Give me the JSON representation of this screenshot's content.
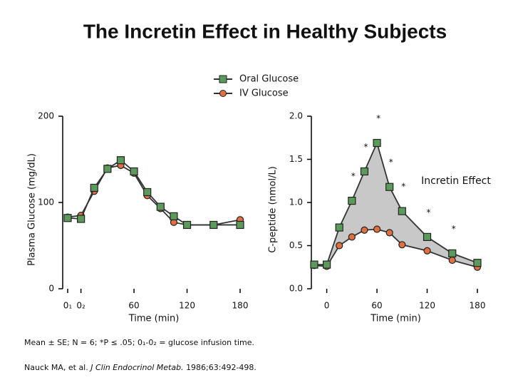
{
  "title": "The Incretin Effect in Healthy Subjects",
  "footnote": "Mean ± SE; N = 6; *P ≤ .05; 0₁-0₂ = glucose infusion time.",
  "citation": {
    "authors": "Nauck MA, et al.",
    "journal": "J Clin Endocrinol Metab.",
    "details": "1986;63:492-498."
  },
  "chart_data": [
    {
      "type": "line",
      "ylabel": "Plasma Glucose (mg/dL)",
      "xlabel": "Time (min)",
      "xlim": [
        -15,
        180
      ],
      "xticks": [
        {
          "value": -15,
          "label": "0₁"
        },
        {
          "value": 0,
          "label": "0₂"
        },
        60,
        120,
        180
      ],
      "ylim": [
        0,
        200
      ],
      "yticks": [
        0,
        100,
        200
      ],
      "grid": false,
      "legend": "top",
      "series": [
        {
          "name": "Oral Glucose",
          "color": "#5b9a5b",
          "line_color": "#333333",
          "marker": "square",
          "x": [
            -15,
            0,
            15,
            30,
            45,
            60,
            75,
            90,
            105,
            120,
            150,
            180
          ],
          "values": [
            82,
            81,
            117,
            139,
            149,
            136,
            112,
            95,
            84,
            74,
            74,
            74
          ]
        },
        {
          "name": "IV Glucose",
          "color": "#e0703f",
          "line_color": "#333333",
          "marker": "circle",
          "x": [
            -15,
            0,
            15,
            30,
            45,
            60,
            75,
            90,
            105,
            120,
            150,
            180
          ],
          "values": [
            83,
            85,
            113,
            140,
            143,
            134,
            108,
            93,
            77,
            74,
            74,
            80
          ]
        }
      ]
    },
    {
      "type": "line",
      "ylabel": "C-peptide (nmol/L)",
      "xlabel": "Time (min)",
      "xlim": [
        -15,
        180
      ],
      "xticks": [
        0,
        60,
        120,
        180
      ],
      "ylim": [
        0,
        2
      ],
      "yticks": [
        {
          "value": 0,
          "label": "0.0"
        },
        0.5,
        {
          "value": 1,
          "label": "1.0"
        },
        1.5,
        {
          "value": 2,
          "label": "2.0"
        }
      ],
      "grid": false,
      "shade_between": true,
      "annotation": "Incretin Effect",
      "series": [
        {
          "name": "Oral Glucose",
          "color": "#5b9a5b",
          "line_color": "#333333",
          "marker": "square",
          "x": [
            -15,
            0,
            15,
            30,
            45,
            60,
            75,
            90,
            120,
            150,
            180
          ],
          "values": [
            0.28,
            0.28,
            0.71,
            1.02,
            1.36,
            1.69,
            1.18,
            0.9,
            0.6,
            0.41,
            0.3
          ],
          "point_labels": [
            null,
            null,
            null,
            "*",
            "*",
            "*",
            "*",
            "*",
            "*",
            "*",
            null
          ]
        },
        {
          "name": "IV Glucose",
          "color": "#e0703f",
          "line_color": "#333333",
          "marker": "circle",
          "x": [
            -15,
            0,
            15,
            30,
            45,
            60,
            75,
            90,
            120,
            150,
            180
          ],
          "values": [
            0.27,
            0.26,
            0.5,
            0.6,
            0.68,
            0.69,
            0.65,
            0.51,
            0.44,
            0.33,
            0.25
          ]
        }
      ]
    }
  ]
}
